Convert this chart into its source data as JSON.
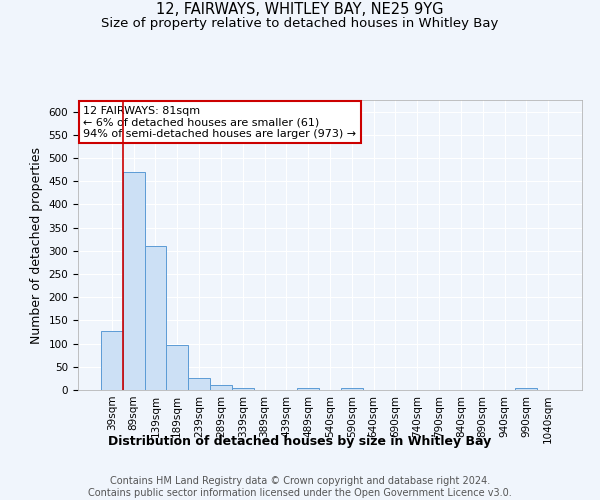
{
  "title_line1": "12, FAIRWAYS, WHITLEY BAY, NE25 9YG",
  "title_line2": "Size of property relative to detached houses in Whitley Bay",
  "xlabel": "Distribution of detached houses by size in Whitley Bay",
  "ylabel": "Number of detached properties",
  "footer_line1": "Contains HM Land Registry data © Crown copyright and database right 2024.",
  "footer_line2": "Contains public sector information licensed under the Open Government Licence v3.0.",
  "annotation_line1": "12 FAIRWAYS: 81sqm",
  "annotation_line2": "← 6% of detached houses are smaller (61)",
  "annotation_line3": "94% of semi-detached houses are larger (973) →",
  "bar_labels": [
    "39sqm",
    "89sqm",
    "139sqm",
    "189sqm",
    "239sqm",
    "289sqm",
    "339sqm",
    "389sqm",
    "439sqm",
    "489sqm",
    "540sqm",
    "590sqm",
    "640sqm",
    "690sqm",
    "740sqm",
    "790sqm",
    "840sqm",
    "890sqm",
    "940sqm",
    "990sqm",
    "1040sqm"
  ],
  "bar_values": [
    128,
    470,
    310,
    96,
    25,
    10,
    5,
    1,
    0,
    5,
    0,
    5,
    0,
    0,
    0,
    0,
    0,
    0,
    0,
    5,
    0
  ],
  "bar_color": "#cce0f5",
  "bar_edge_color": "#5b9bd5",
  "reference_line_color": "#cc0000",
  "ylim": [
    0,
    625
  ],
  "yticks": [
    0,
    50,
    100,
    150,
    200,
    250,
    300,
    350,
    400,
    450,
    500,
    550,
    600
  ],
  "background_color": "#f0f5fc",
  "plot_bg_color": "#f0f5fc",
  "grid_color": "#ffffff",
  "title_fontsize": 10.5,
  "subtitle_fontsize": 9.5,
  "annotation_fontsize": 8,
  "axis_label_fontsize": 9,
  "tick_fontsize": 7.5,
  "footer_fontsize": 7
}
